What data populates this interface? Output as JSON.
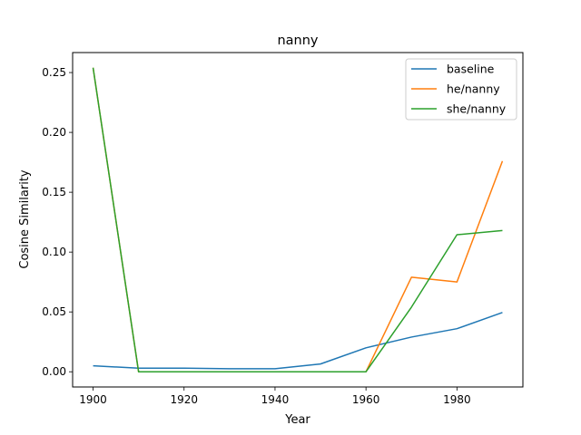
{
  "chart_data": {
    "type": "line",
    "title": "nanny",
    "xlabel": "Year",
    "ylabel": "Cosine Similarity",
    "x": [
      1900,
      1910,
      1920,
      1930,
      1940,
      1950,
      1960,
      1970,
      1980,
      1990
    ],
    "series": [
      {
        "name": "baseline",
        "color": "#1f77b4",
        "values": [
          0.005,
          0.003,
          0.003,
          0.0025,
          0.0025,
          0.0065,
          0.02,
          0.029,
          0.036,
          0.0495
        ]
      },
      {
        "name": "he/nanny",
        "color": "#ff7f0e",
        "values": [
          0.254,
          0.0,
          0.0,
          0.0,
          0.0,
          0.0,
          0.0,
          0.079,
          0.075,
          0.176
        ]
      },
      {
        "name": "she/nanny",
        "color": "#2ca02c",
        "values": [
          0.254,
          0.0,
          0.0,
          0.0,
          0.0,
          0.0,
          0.0,
          0.054,
          0.1145,
          0.118
        ]
      }
    ],
    "xlim": [
      1895.5,
      1994.5
    ],
    "ylim": [
      -0.0127,
      0.2667
    ],
    "xticks": [
      1900,
      1920,
      1940,
      1960,
      1980
    ],
    "xtick_labels": [
      "1900",
      "1920",
      "1940",
      "1960",
      "1980"
    ],
    "yticks": [
      0.0,
      0.05,
      0.1,
      0.15,
      0.2,
      0.25
    ],
    "ytick_labels": [
      "0.00",
      "0.05",
      "0.10",
      "0.15",
      "0.20",
      "0.25"
    ],
    "grid": false,
    "legend_position": "top-right"
  }
}
